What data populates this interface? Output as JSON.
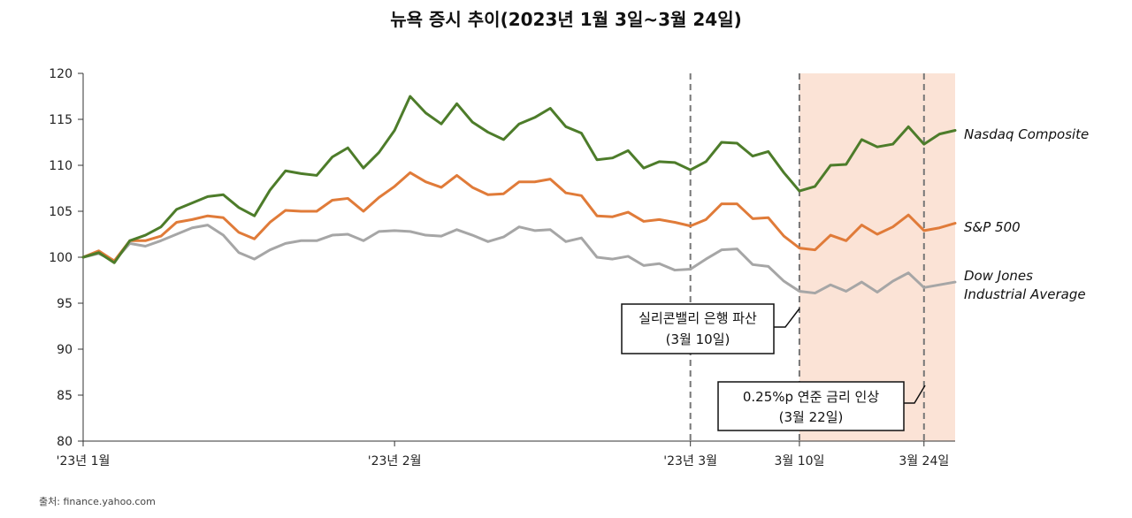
{
  "chart_data": {
    "type": "line",
    "title": "뉴욕 증시 추이(2023년 1월 3일~3월 24일)",
    "source": "출처: finance.yahoo.com",
    "ylim": [
      80,
      120
    ],
    "yticks": [
      "80",
      "85",
      "90",
      "95",
      "100",
      "105",
      "110",
      "115",
      "120"
    ],
    "xlim": [
      0,
      56
    ],
    "x_tick_labels": [
      {
        "x": 0,
        "label": "'23년 1월"
      },
      {
        "x": 20,
        "label": "'23년 2월"
      },
      {
        "x": 39,
        "label": "'23년 3월"
      },
      {
        "x": 46,
        "label": "3월 10일"
      },
      {
        "x": 54,
        "label": "3월 24일"
      }
    ],
    "grid": false,
    "highlight_range": [
      46,
      56
    ],
    "highlight_color": "#fbe3d6",
    "event_lines": [
      39,
      46,
      54
    ],
    "series": [
      {
        "name": "Nasdaq Composite",
        "color": "#4d7c2a",
        "values": [
          100,
          100.5,
          99.4,
          101.8,
          102.4,
          103.3,
          105.2,
          105.9,
          106.6,
          106.8,
          105.4,
          104.5,
          107.3,
          109.4,
          109.1,
          108.9,
          110.9,
          111.9,
          109.7,
          111.4,
          113.8,
          117.5,
          115.7,
          114.5,
          116.7,
          114.7,
          113.6,
          112.8,
          114.5,
          115.2,
          116.2,
          114.2,
          113.5,
          110.6,
          110.8,
          111.6,
          109.7,
          110.4,
          110.3,
          109.5,
          110.4,
          112.5,
          112.4,
          111.0,
          111.5,
          109.2,
          107.2,
          107.7,
          110.0,
          110.1,
          112.8,
          112.0,
          112.3,
          114.2,
          112.3,
          113.4,
          113.8
        ]
      },
      {
        "name": "S&P 500",
        "color": "#e07b39",
        "values": [
          100,
          100.7,
          99.6,
          101.8,
          101.8,
          102.3,
          103.8,
          104.1,
          104.5,
          104.3,
          102.7,
          102.0,
          103.8,
          105.1,
          105.0,
          105.0,
          106.2,
          106.4,
          105.0,
          106.5,
          107.7,
          109.2,
          108.2,
          107.6,
          108.9,
          107.6,
          106.8,
          106.9,
          108.2,
          108.2,
          108.5,
          107.0,
          106.7,
          104.5,
          104.4,
          104.9,
          103.9,
          104.1,
          103.8,
          103.4,
          104.1,
          105.8,
          105.8,
          104.2,
          104.3,
          102.3,
          101.0,
          100.8,
          102.4,
          101.8,
          103.5,
          102.5,
          103.3,
          104.6,
          102.9,
          103.2,
          103.7
        ]
      },
      {
        "name": "Dow Jones Industrial Average",
        "color": "#a6a6a6",
        "values": [
          100,
          100.4,
          99.6,
          101.5,
          101.2,
          101.8,
          102.5,
          103.2,
          103.5,
          102.4,
          100.5,
          99.8,
          100.8,
          101.5,
          101.8,
          101.8,
          102.4,
          102.5,
          101.8,
          102.8,
          102.9,
          102.8,
          102.4,
          102.3,
          103.0,
          102.4,
          101.7,
          102.2,
          103.3,
          102.9,
          103.0,
          101.7,
          102.1,
          100.0,
          99.8,
          100.1,
          99.1,
          99.3,
          98.6,
          98.7,
          99.8,
          100.8,
          100.9,
          99.2,
          99.0,
          97.4,
          96.3,
          96.1,
          97.0,
          96.3,
          97.3,
          96.2,
          97.4,
          98.3,
          96.7,
          97.0,
          97.3
        ]
      }
    ],
    "series_labels": [
      {
        "lines": [
          "Nasdaq Composite"
        ]
      },
      {
        "lines": [
          "S&P 500"
        ]
      },
      {
        "lines": [
          "Dow Jones",
          "Industrial  Average"
        ]
      }
    ],
    "annotations": [
      {
        "lines": [
          "실리콘밸리 은행 파산",
          "(3월 10일)"
        ]
      },
      {
        "lines": [
          "0.25%p 연준 금리 인상",
          "(3월 22일)"
        ]
      }
    ]
  }
}
